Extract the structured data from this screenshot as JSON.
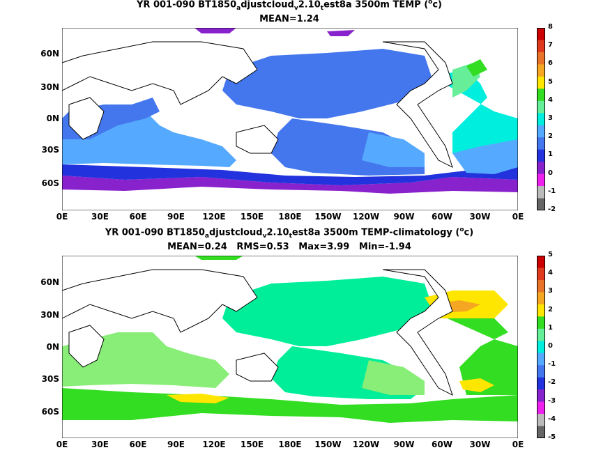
{
  "panels": [
    {
      "title_main": "YR 001-090 BT1850",
      "title_sub1": "a",
      "title_mid": "djustcloud",
      "title_sub2": "v",
      "title_mid2": "2.10",
      "title_sub3": "t",
      "title_end": "est8a 3500m TEMP (",
      "title_sup": "o",
      "title_unit": "c)",
      "stats": "MEAN=1.24",
      "ylabels": [
        "60N",
        "30N",
        "0N",
        "30S",
        "60S"
      ],
      "xlabels": [
        "0E",
        "30E",
        "60E",
        "90E",
        "120E",
        "150E",
        "180E",
        "150W",
        "120W",
        "90W",
        "60W",
        "30W",
        "0E"
      ],
      "colorbar_labels": [
        "8",
        "7",
        "6",
        "5",
        "4",
        "3",
        "2",
        "1",
        "0",
        "-1",
        "-2"
      ],
      "colorbar_colors": [
        "#cc0000",
        "#e03a1e",
        "#e8742a",
        "#f5a623",
        "#ffe600",
        "#33dd22",
        "#66ee99",
        "#00eedd",
        "#55aaff",
        "#4477ee",
        "#2233dd",
        "#8822cc",
        "#ee22ee",
        "#bbbbbb",
        "#666666"
      ]
    },
    {
      "title_main": "YR 001-090 BT1850",
      "title_sub1": "a",
      "title_mid": "djustcloud",
      "title_sub2": "v",
      "title_mid2": "2.10",
      "title_sub3": "t",
      "title_end": "est8a 3500m TEMP-climatology (",
      "title_sup": "o",
      "title_unit": "c)",
      "stats": "MEAN=0.24   RMS=0.53   Max=3.99   Min=-1.94",
      "ylabels": [
        "60N",
        "30N",
        "0N",
        "30S",
        "60S"
      ],
      "xlabels": [
        "0E",
        "30E",
        "60E",
        "90E",
        "120E",
        "150E",
        "180E",
        "150W",
        "120W",
        "90W",
        "60W",
        "30W",
        "0E"
      ],
      "colorbar_labels": [
        "5",
        "4",
        "3",
        "2",
        "1",
        "0",
        "-1",
        "-2",
        "-3",
        "-4",
        "-5"
      ],
      "colorbar_colors": [
        "#cc0000",
        "#e03a1e",
        "#e8742a",
        "#f5a623",
        "#ffe600",
        "#33dd22",
        "#66ee99",
        "#00eedd",
        "#55aaff",
        "#4477ee",
        "#2233dd",
        "#8822cc",
        "#ee22ee",
        "#bbbbbb",
        "#666666"
      ]
    }
  ]
}
